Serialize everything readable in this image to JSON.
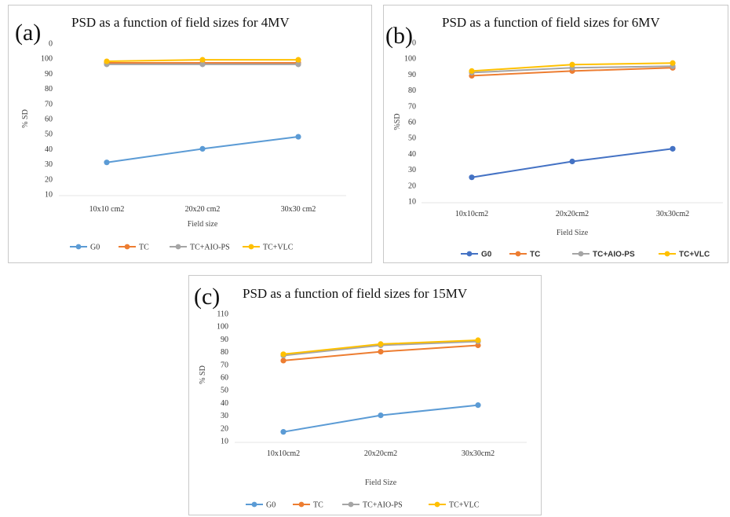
{
  "chart_data": [
    {
      "type": "line",
      "panel_label": "(a)",
      "title": "PSD as a function of field sizes for 4MV",
      "xlabel": "Field size",
      "ylabel": "% SD",
      "categories": [
        "10x10 cm2",
        "20x20 cm2",
        "30x30 cm2"
      ],
      "yticks": [
        "10",
        "20",
        "30",
        "40",
        "50",
        "60",
        "70",
        "80",
        "90",
        "100",
        "0"
      ],
      "ylim": [
        10,
        110
      ],
      "grid": false,
      "legend_position": "bottom",
      "series": [
        {
          "name": "G0",
          "color": "#5b9bd5",
          "values": [
            31,
            40,
            48
          ]
        },
        {
          "name": "TC",
          "color": "#ed7d31",
          "values": [
            97,
            97,
            97
          ]
        },
        {
          "name": "TC+AIO-PS",
          "color": "#a5a5a5",
          "values": [
            96,
            96,
            96
          ]
        },
        {
          "name": "TC+VLC",
          "color": "#ffc000",
          "values": [
            98,
            99,
            99
          ]
        }
      ]
    },
    {
      "type": "line",
      "panel_label": "(b)",
      "title": "PSD as a function of field sizes for 6MV",
      "xlabel": "Field Size",
      "ylabel": "%SD",
      "categories": [
        "10x10cm2",
        "20x20cm2",
        "30x30cm2"
      ],
      "yticks": [
        "10",
        "20",
        "30",
        "40",
        "50",
        "60",
        "70",
        "80",
        "90",
        "100",
        "0"
      ],
      "ylim": [
        10,
        110
      ],
      "grid": false,
      "legend_position": "bottom",
      "series": [
        {
          "name": "G0",
          "color": "#4472c4",
          "values": [
            25,
            35,
            43
          ]
        },
        {
          "name": "TC",
          "color": "#ed7d31",
          "values": [
            89,
            92,
            94
          ]
        },
        {
          "name": "TC+AIO-PS",
          "color": "#a5a5a5",
          "values": [
            91,
            94,
            95
          ]
        },
        {
          "name": "TC+VLC",
          "color": "#ffc000",
          "values": [
            92,
            96,
            97
          ]
        }
      ]
    },
    {
      "type": "line",
      "panel_label": "(c)",
      "title": "PSD as a function of field sizes for 15MV",
      "xlabel": "Field Size",
      "ylabel": "% SD",
      "categories": [
        "10x10cm2",
        "20x20cm2",
        "30x30cm2"
      ],
      "yticks": [
        "10",
        "20",
        "30",
        "40",
        "50",
        "60",
        "70",
        "80",
        "90",
        "100",
        "110"
      ],
      "ylim": [
        10,
        110
      ],
      "grid": false,
      "legend_position": "bottom",
      "series": [
        {
          "name": "G0",
          "color": "#5b9bd5",
          "values": [
            17,
            30,
            38
          ]
        },
        {
          "name": "TC",
          "color": "#ed7d31",
          "values": [
            73,
            80,
            85
          ]
        },
        {
          "name": "TC+AIO-PS",
          "color": "#a5a5a5",
          "values": [
            77,
            85,
            88
          ]
        },
        {
          "name": "TC+VLC",
          "color": "#ffc000",
          "values": [
            78,
            86,
            89
          ]
        }
      ]
    }
  ]
}
